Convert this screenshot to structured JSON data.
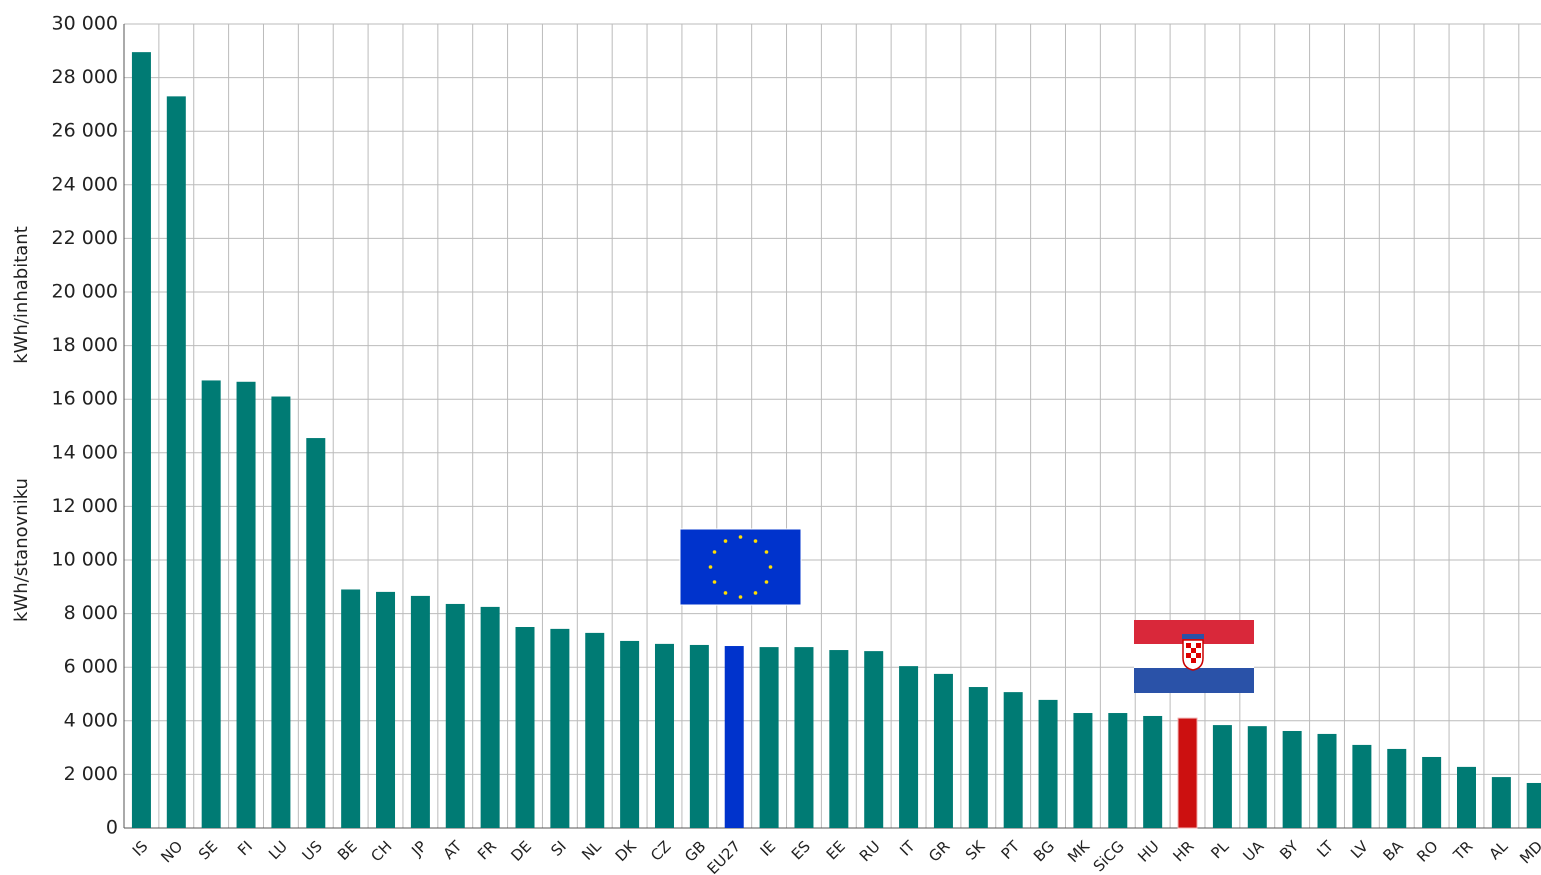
{
  "chart_data": {
    "type": "bar",
    "y_label": [
      "kWh/stanovniku",
      "kWh/inhabitant"
    ],
    "categories": [
      "IS",
      "NO",
      "SE",
      "FI",
      "LU",
      "US",
      "BE",
      "CH",
      "JP",
      "AT",
      "FR",
      "DE",
      "SI",
      "NL",
      "DK",
      "CZ",
      "GB",
      "EU27",
      "IE",
      "ES",
      "EE",
      "RU",
      "IT",
      "GR",
      "SK",
      "PT",
      "BG",
      "MK",
      "SiCG",
      "HU",
      "HR",
      "PL",
      "UA",
      "BY",
      "LT",
      "LV",
      "BA",
      "RO",
      "TR",
      "AL",
      "MD"
    ],
    "values": [
      28950,
      27300,
      16700,
      16650,
      16100,
      14550,
      8900,
      8810,
      8660,
      8360,
      8250,
      7500,
      7430,
      7280,
      6980,
      6870,
      6830,
      6790,
      6750,
      6750,
      6640,
      6600,
      6040,
      5750,
      5260,
      5070,
      4780,
      4290,
      4290,
      4180,
      4100,
      3840,
      3800,
      3620,
      3510,
      3100,
      2950,
      2650,
      2280,
      1900,
      1680
    ],
    "colors": [
      "#007b74",
      "#007b74",
      "#007b74",
      "#007b74",
      "#007b74",
      "#007b74",
      "#007b74",
      "#007b74",
      "#007b74",
      "#007b74",
      "#007b74",
      "#007b74",
      "#007b74",
      "#007b74",
      "#007b74",
      "#007b74",
      "#007b74",
      "#0033cc",
      "#007b74",
      "#007b74",
      "#007b74",
      "#007b74",
      "#007b74",
      "#007b74",
      "#007b74",
      "#007b74",
      "#007b74",
      "#007b74",
      "#007b74",
      "#007b74",
      "#cc1010",
      "#007b74",
      "#007b74",
      "#007b74",
      "#007b74",
      "#007b74",
      "#007b74",
      "#007b74",
      "#007b74",
      "#007b74",
      "#007b74"
    ],
    "ylim": [
      0,
      30000
    ],
    "yticks": [
      0,
      {
        "value": 2000,
        "label": "2 000"
      },
      {
        "value": 4000,
        "label": "4 000"
      },
      {
        "value": 6000,
        "label": "6 000"
      },
      {
        "value": 8000,
        "label": "8 000"
      },
      {
        "value": 10000,
        "label": "10 000"
      },
      {
        "value": 12000,
        "label": "12 000"
      },
      {
        "value": 14000,
        "label": "14 000"
      },
      {
        "value": 16000,
        "label": "16 000"
      },
      {
        "value": 18000,
        "label": "18 000"
      },
      {
        "value": 20000,
        "label": "20 000"
      },
      {
        "value": 22000,
        "label": "22 000"
      },
      {
        "value": 24000,
        "label": "24 000"
      },
      {
        "value": 26000,
        "label": "26 000"
      },
      {
        "value": 28000,
        "label": "28 000"
      },
      {
        "value": 30000,
        "label": "30 000"
      }
    ],
    "grid": true
  }
}
